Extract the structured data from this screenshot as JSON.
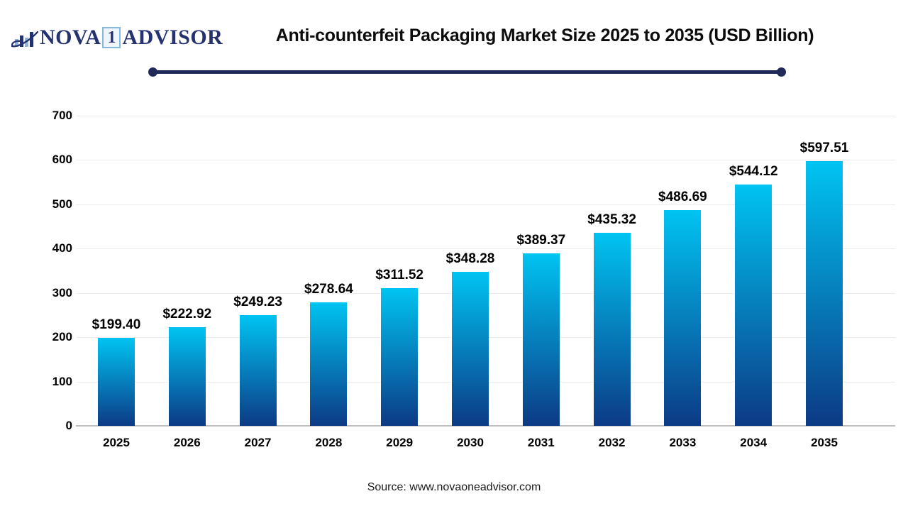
{
  "logo": {
    "icon": "bar-chart-swoosh-icon",
    "part1": "NOVA",
    "boxed": "1",
    "part2": "ADVISOR",
    "navy": "#243370",
    "light_blue": "#8fb7dd"
  },
  "header": {
    "title": "Anti-counterfeit Packaging Market Size 2025 to 2035 (USD Billion)"
  },
  "chart_data": {
    "type": "bar",
    "title": "Anti-counterfeit Packaging Market Size 2025 to 2035 (USD Billion)",
    "categories": [
      "2025",
      "2026",
      "2027",
      "2028",
      "2029",
      "2030",
      "2031",
      "2032",
      "2033",
      "2034",
      "2035"
    ],
    "values": [
      199.4,
      222.92,
      249.23,
      278.64,
      311.52,
      348.28,
      389.37,
      435.32,
      486.69,
      544.12,
      597.51
    ],
    "value_labels": [
      "$199.40",
      "$222.92",
      "$249.23",
      "$278.64",
      "$311.52",
      "$348.28",
      "$389.37",
      "$435.32",
      "$486.69",
      "$544.12",
      "$597.51"
    ],
    "xlabel": "",
    "ylabel": "",
    "ylim": [
      0,
      700
    ],
    "yticks": [
      0,
      100,
      200,
      300,
      400,
      500,
      600,
      700
    ],
    "grid": true,
    "legend": "none",
    "bar_gradient_top": "#00c4f2",
    "bar_gradient_bottom": "#0c3a85"
  },
  "footer": {
    "source": "Source: www.novaoneadvisor.com"
  }
}
